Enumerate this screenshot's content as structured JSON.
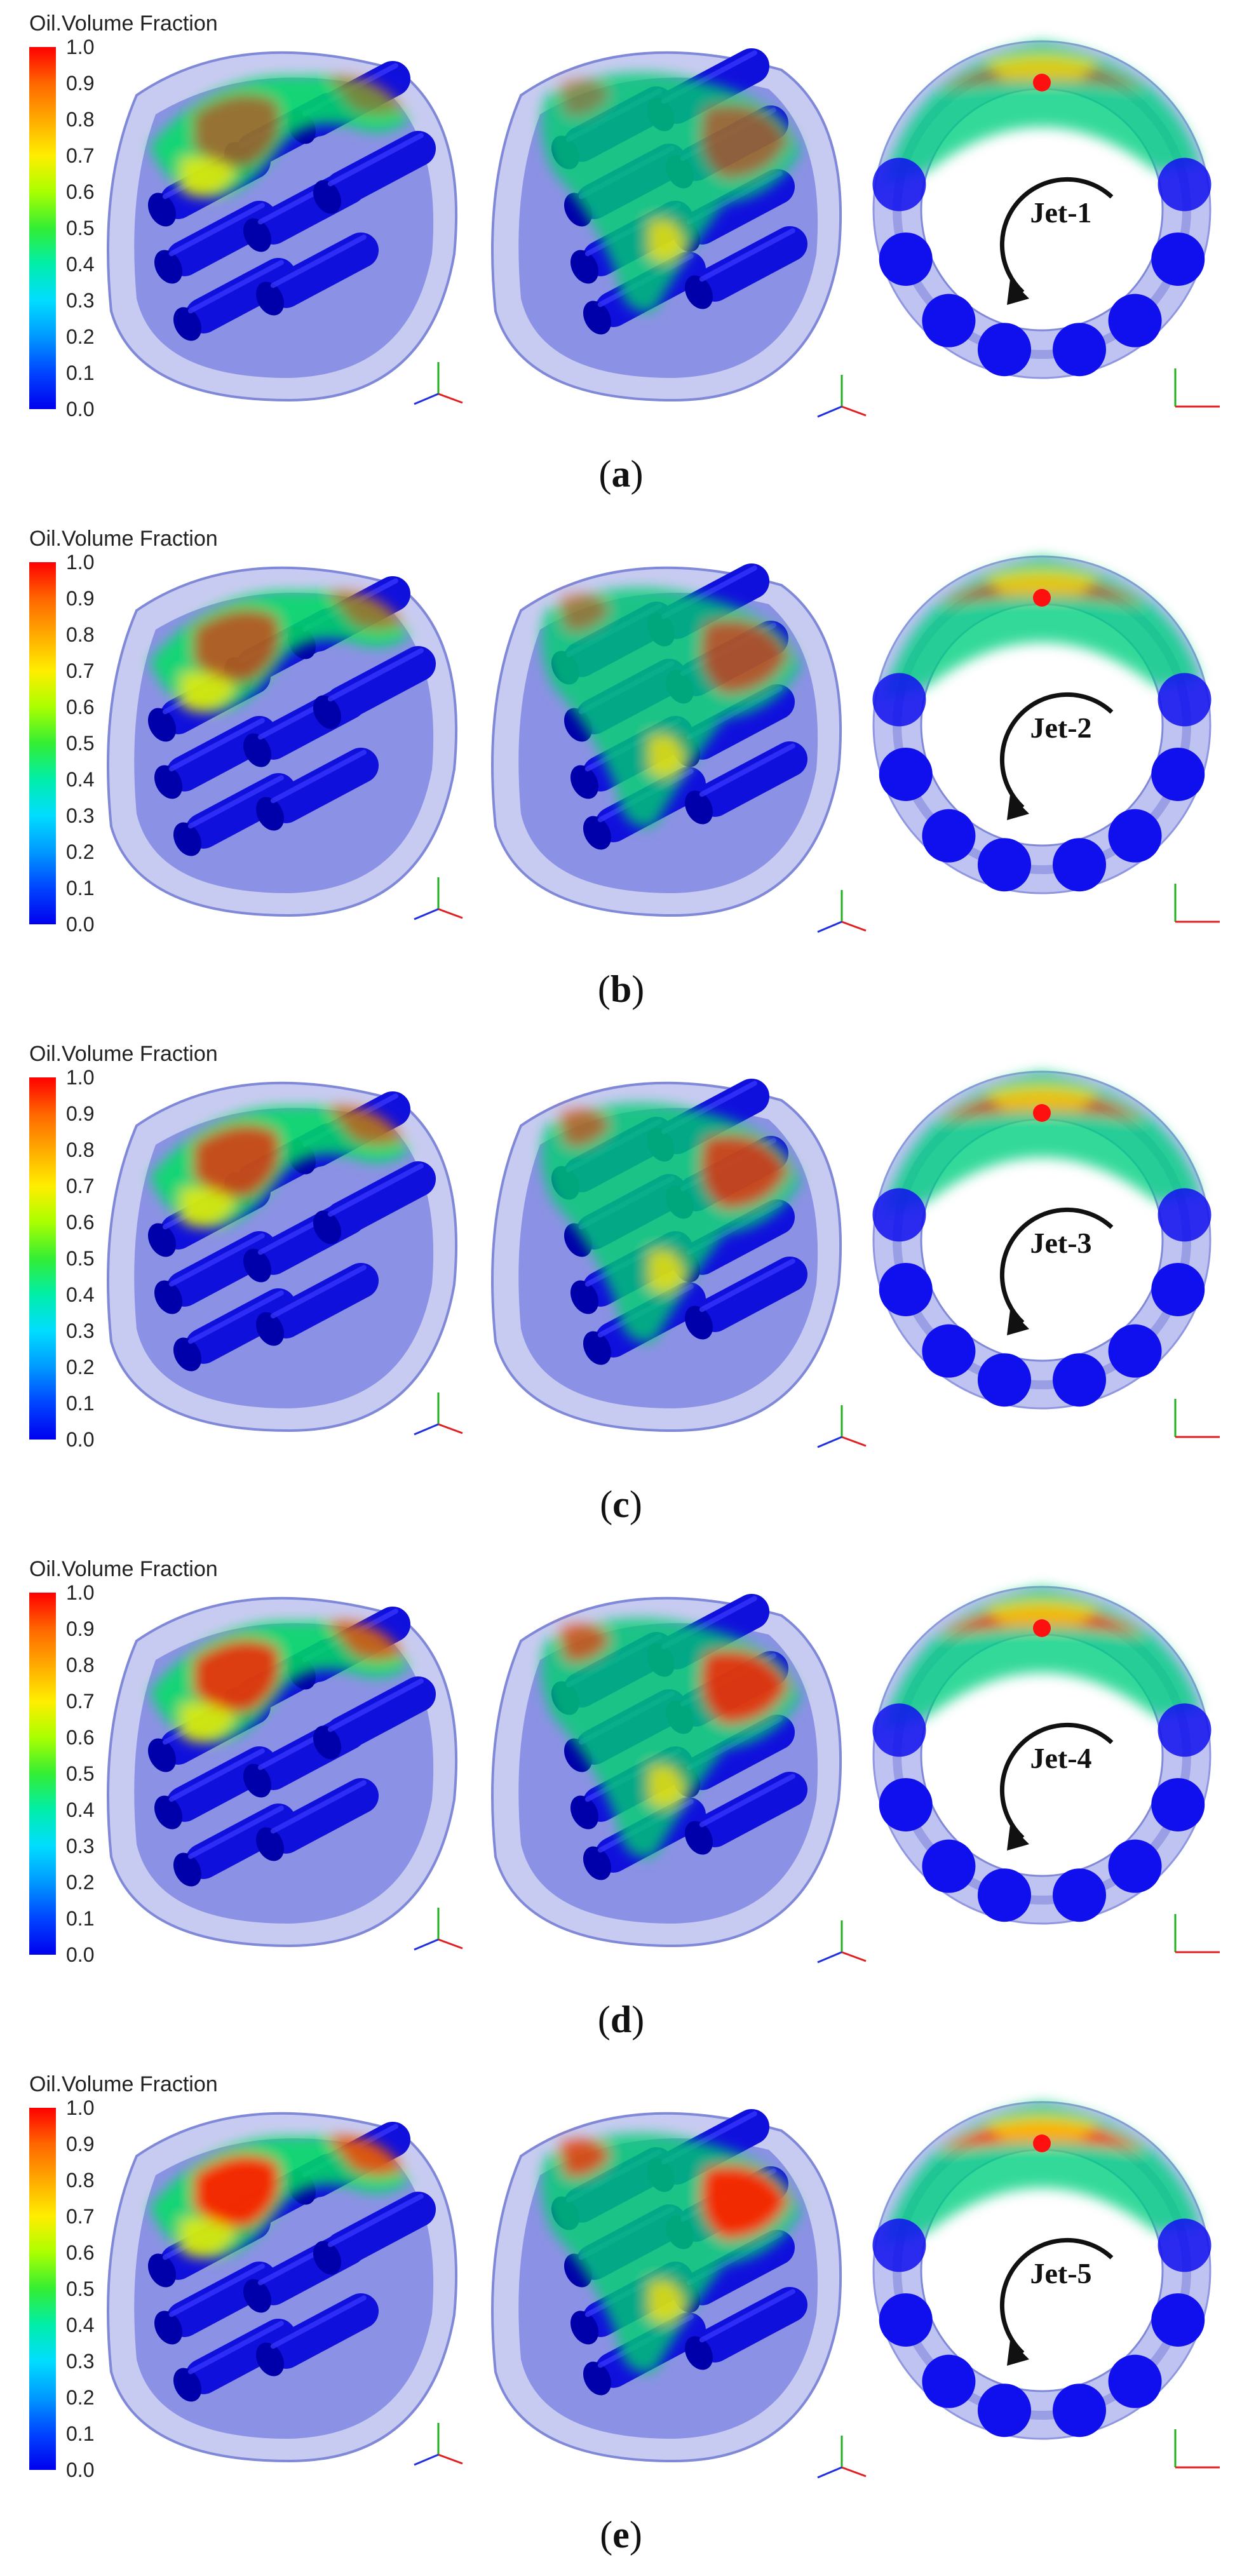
{
  "legend": {
    "title": "Oil.Volume Fraction",
    "ticks": [
      "1.0",
      "0.9",
      "0.8",
      "0.7",
      "0.6",
      "0.5",
      "0.4",
      "0.3",
      "0.2",
      "0.1",
      "0.0"
    ],
    "colors": [
      "#ff0000",
      "#ff6600",
      "#ffaa00",
      "#ffee00",
      "#aaff00",
      "#33ee33",
      "#00eeaa",
      "#00ddff",
      "#0099ff",
      "#0044ff",
      "#0000ee"
    ]
  },
  "panels": [
    {
      "id": "a",
      "caption_letter": "a",
      "jet_label": "Jet-1"
    },
    {
      "id": "b",
      "caption_letter": "b",
      "jet_label": "Jet-2"
    },
    {
      "id": "c",
      "caption_letter": "c",
      "jet_label": "Jet-3"
    },
    {
      "id": "d",
      "caption_letter": "d",
      "jet_label": "Jet-4"
    },
    {
      "id": "e",
      "caption_letter": "e",
      "jet_label": "Jet-5"
    }
  ]
}
